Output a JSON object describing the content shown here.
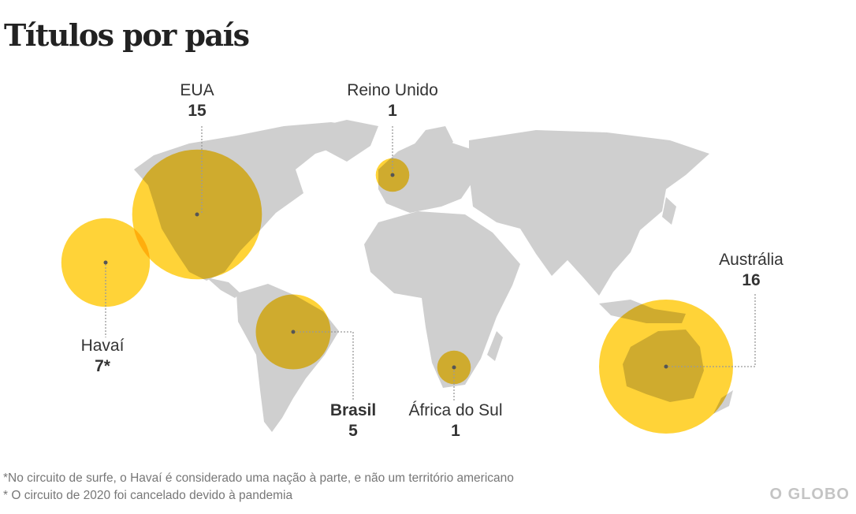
{
  "title": "Títulos por país",
  "colors": {
    "land": "#cfcfcf",
    "bubble": "#ffc600",
    "leader": "#999999",
    "text": "#333333"
  },
  "chart_data": {
    "type": "bubble-map",
    "value_label": "Títulos",
    "points": [
      {
        "name": "EUA",
        "value": "15",
        "numeric": 15
      },
      {
        "name": "Reino Unido",
        "value": "1",
        "numeric": 1
      },
      {
        "name": "Havaí",
        "value": "7*",
        "numeric": 7
      },
      {
        "name": "Brasil",
        "value": "5",
        "numeric": 5,
        "emphasis": true
      },
      {
        "name": "África do Sul",
        "value": "1",
        "numeric": 1
      },
      {
        "name": "Austrália",
        "value": "16",
        "numeric": 16
      }
    ]
  },
  "notes": [
    "*No circuito de surfe, o Havaí é considerado uma nação à parte, e não um território americano",
    "* O circuito de 2020 foi cancelado devido à pandemia"
  ],
  "logo": "O GLOBO"
}
